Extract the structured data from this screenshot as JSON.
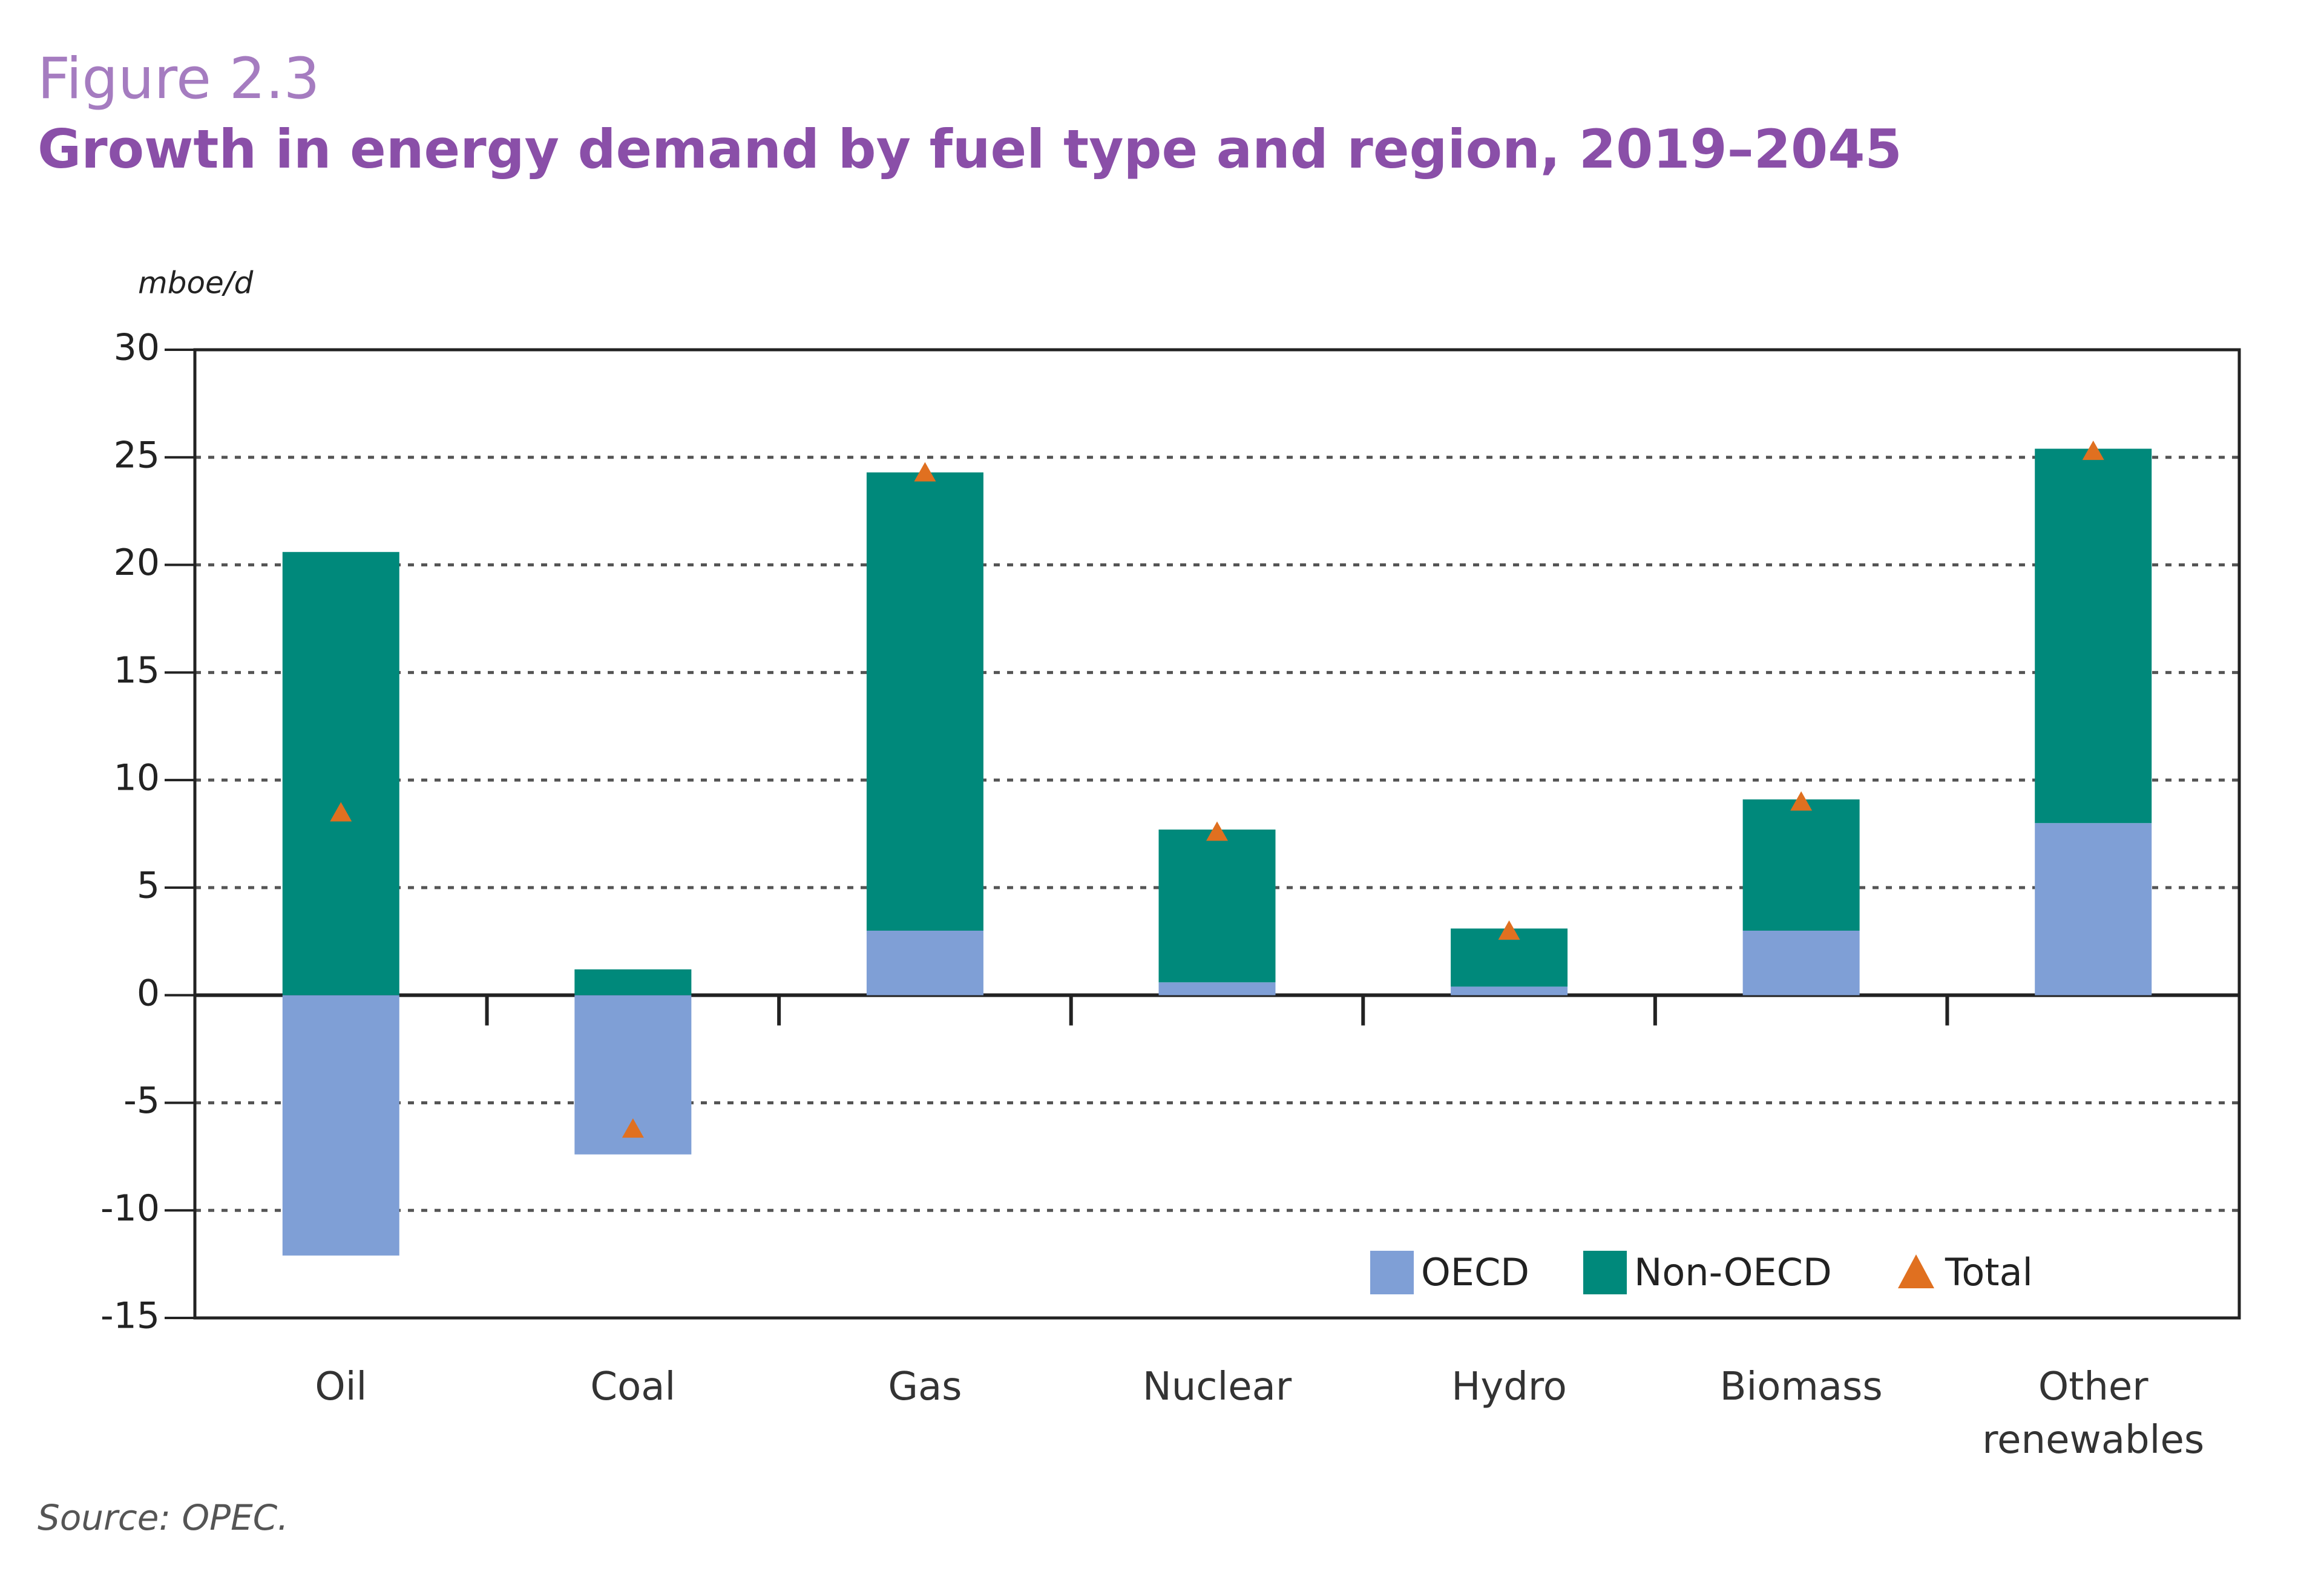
{
  "chart_data": {
    "type": "bar",
    "stacked": true,
    "figure_label": "Figure 2.3",
    "title": "Growth in energy demand by fuel type and region, 2019–2045",
    "y_axis_label": "mboe/d",
    "source": "Source: OPEC.",
    "categories": [
      "Oil",
      "Coal",
      "Gas",
      "Nuclear",
      "Hydro",
      "Biomass",
      "Other renewables"
    ],
    "series": [
      {
        "name": "OECD",
        "color": "#7f9fd6",
        "mark": "bar",
        "values": [
          -12.1,
          -7.4,
          3.0,
          0.6,
          0.4,
          3.0,
          8.0
        ]
      },
      {
        "name": "Non-OECD",
        "color": "#00897b",
        "mark": "bar",
        "values": [
          20.6,
          1.2,
          21.3,
          7.1,
          2.7,
          6.1,
          17.4
        ]
      },
      {
        "name": "Total",
        "color": "#e07020",
        "mark": "triangle",
        "values": [
          8.5,
          -6.2,
          24.3,
          7.6,
          3.0,
          9.0,
          25.3
        ]
      }
    ],
    "ylim": [
      -15,
      30
    ],
    "yticks": [
      -15,
      -10,
      -5,
      0,
      5,
      10,
      15,
      20,
      25,
      30
    ],
    "grid": true,
    "legend": "bottom-right"
  }
}
